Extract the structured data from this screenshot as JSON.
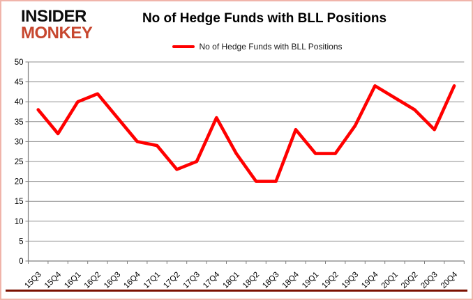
{
  "logo": {
    "line1": "INSIDER",
    "line2": "MONKEY",
    "line2_color": "#c7472f"
  },
  "header": {
    "title": "No of Hedge Funds with BLL Positions"
  },
  "legend": {
    "label": "No of Hedge Funds with BLL Positions",
    "swatch_color": "#ff0000",
    "position": "top"
  },
  "chart_data": {
    "type": "line",
    "title": "No of Hedge Funds with BLL Positions",
    "series": [
      {
        "name": "No of Hedge Funds with BLL Positions",
        "color": "#ff0000",
        "values": [
          38,
          32,
          40,
          42,
          36,
          30,
          29,
          23,
          25,
          36,
          27,
          20,
          20,
          33,
          27,
          27,
          34,
          44,
          41,
          38,
          33,
          44
        ]
      }
    ],
    "categories": [
      "15Q3",
      "15Q4",
      "16Q1",
      "16Q2",
      "16Q3",
      "16Q4",
      "17Q1",
      "17Q2",
      "17Q3",
      "17Q4",
      "18Q1",
      "18Q2",
      "18Q3",
      "18Q4",
      "19Q1",
      "19Q2",
      "19Q3",
      "19Q4",
      "20Q1",
      "20Q2",
      "20Q3",
      "20Q4"
    ],
    "yticks": [
      0,
      5,
      10,
      15,
      20,
      25,
      30,
      35,
      40,
      45,
      50
    ],
    "ylim": [
      0,
      50
    ],
    "xlabel": "",
    "ylabel": "",
    "grid": true,
    "gridline_color": "#8f8f8f",
    "axis_color": "#7f7f7f",
    "tick_label_color": "#000000",
    "x_label_rotation_deg": 45,
    "legend_position": "top",
    "markers": false
  },
  "footer": {
    "rule_color": "#7b1000"
  }
}
